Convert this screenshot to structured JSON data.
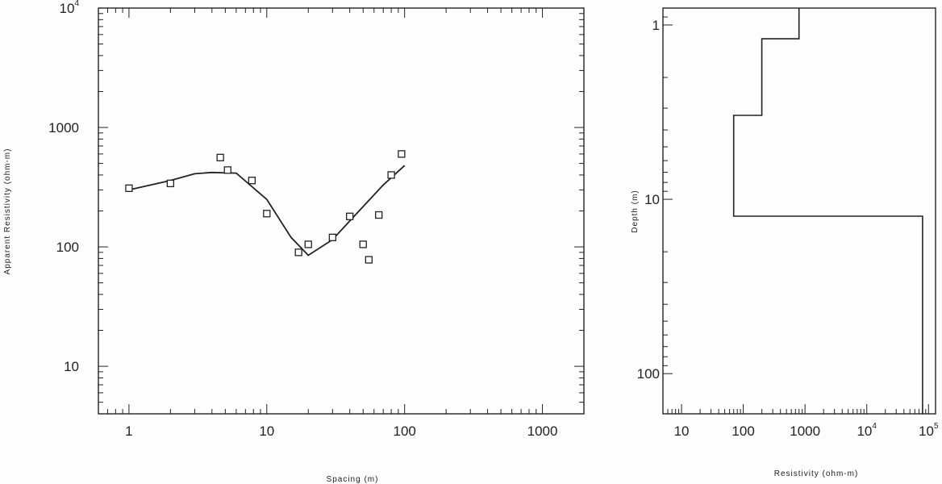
{
  "chart_data": [
    {
      "type": "scatter",
      "title": "",
      "xlabel": "Spacing (m)",
      "ylabel": "Apparent Resistivity (ohm-m)",
      "x_scale": "log",
      "y_scale": "log",
      "xlim": [
        0.6,
        2000
      ],
      "ylim": [
        4,
        10000
      ],
      "x_ticks": [
        {
          "value": 1,
          "label": "1"
        },
        {
          "value": 10,
          "label": "10"
        },
        {
          "value": 100,
          "label": "100"
        },
        {
          "value": 1000,
          "label": "1000"
        }
      ],
      "y_ticks": [
        {
          "value": 10,
          "label": "10"
        },
        {
          "value": 100,
          "label": "100"
        },
        {
          "value": 1000,
          "label": "1000"
        },
        {
          "value": 10000,
          "label": "10",
          "exponent": "4"
        }
      ],
      "series": [
        {
          "role": "observed",
          "marker": "square",
          "x": [
            1.0,
            2.0,
            4.6,
            5.2,
            7.8,
            10.0,
            17.0,
            20.0,
            30.0,
            40.0,
            50.0,
            55.0,
            65.0,
            80.0,
            95.0
          ],
          "y": [
            310,
            340,
            560,
            440,
            360,
            190,
            90,
            105,
            120,
            180,
            105,
            78,
            185,
            400,
            600
          ]
        },
        {
          "role": "model-fit",
          "marker": "line",
          "x": [
            1.0,
            2.0,
            3.0,
            4.0,
            6.0,
            10.0,
            15.0,
            20.0,
            30.0,
            40.0,
            55.0,
            70.0,
            100.0
          ],
          "y": [
            300,
            360,
            410,
            420,
            415,
            250,
            120,
            85,
            115,
            165,
            245,
            330,
            480
          ]
        }
      ]
    },
    {
      "type": "line",
      "title": "",
      "xlabel": "Resistivity (ohm-m)",
      "ylabel": "Depth (m)",
      "x_scale": "log",
      "y_scale": "log",
      "y_inverted": true,
      "xlim": [
        5,
        130000
      ],
      "ylim": [
        0.8,
        170
      ],
      "x_ticks": [
        {
          "value": 10,
          "label": "10"
        },
        {
          "value": 100,
          "label": "100"
        },
        {
          "value": 1000,
          "label": "1000"
        },
        {
          "value": 10000,
          "label": "10",
          "exponent": "4"
        },
        {
          "value": 100000,
          "label": "10",
          "exponent": "5"
        }
      ],
      "y_ticks": [
        {
          "value": 1,
          "label": "1"
        },
        {
          "value": 10,
          "label": "10"
        },
        {
          "value": 100,
          "label": "100"
        }
      ],
      "series": [
        {
          "role": "layered-model",
          "steps": [
            {
              "resistivity": 800,
              "top": 0.8,
              "bottom": 1.2
            },
            {
              "resistivity": 200,
              "top": 1.2,
              "bottom": 3.3
            },
            {
              "resistivity": 70,
              "top": 3.3,
              "bottom": 12.5
            },
            {
              "resistivity": 80000,
              "top": 12.5,
              "bottom": 170
            }
          ]
        }
      ]
    }
  ]
}
